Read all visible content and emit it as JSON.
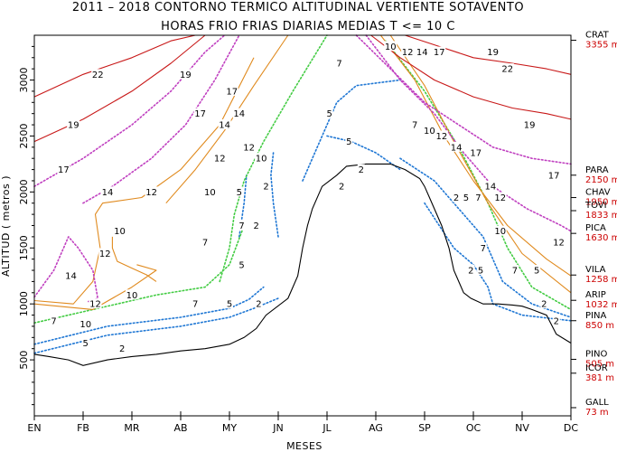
{
  "chart_data": {
    "type": "contour",
    "title": "2011 – 2018 CONTORNO TERMICO ALTITUDINAL VERTIENTE SOTAVENTO",
    "subtitle": "HORAS FRIO FRIAS DIARIAS MEDIAS T <= 10 C",
    "xlabel": "MESES",
    "ylabel": "ALTITUD ( metros )",
    "months": [
      "EN",
      "FB",
      "MR",
      "AB",
      "MY",
      "JN",
      "JL",
      "AG",
      "SP",
      "OC",
      "NV",
      "DC"
    ],
    "yticks": [
      500,
      1000,
      1500,
      2000,
      2500,
      3000
    ],
    "ylim": [
      0,
      3400
    ],
    "stations": [
      {
        "name": "CRAT",
        "alt": 3355,
        "alt_label": "3355 m"
      },
      {
        "name": "PARA",
        "alt": 2150,
        "alt_label": "2150 m"
      },
      {
        "name": "CHAV",
        "alt": 1950,
        "alt_label": "1950 m"
      },
      {
        "name": "TOVI",
        "alt": 1833,
        "alt_label": "1833 m"
      },
      {
        "name": "PICA",
        "alt": 1630,
        "alt_label": "1630 m"
      },
      {
        "name": "VILA",
        "alt": 1258,
        "alt_label": "1258 m"
      },
      {
        "name": "ARIP",
        "alt": 1032,
        "alt_label": "1032 m"
      },
      {
        "name": "PINA",
        "alt": 850,
        "alt_label": "850 m"
      },
      {
        "name": "PINO",
        "alt": 505,
        "alt_label": "505 m"
      },
      {
        "name": "ICOR",
        "alt": 381,
        "alt_label": "381 m"
      },
      {
        "name": "GALL",
        "alt": 73,
        "alt_label": "73 m"
      }
    ],
    "contour_levels": [
      2,
      5,
      7,
      10,
      12,
      14,
      17,
      19,
      22
    ],
    "level_colors": {
      "2": "#1f77d4",
      "5": "#1f77d4",
      "7": "#44cc44",
      "10": "#e08a1e",
      "12": "#e08a1e",
      "14": "#c040c0",
      "17": "#c040c0",
      "19": "#c81818",
      "22": "#c81818"
    },
    "level_styles": {
      "2": "dotted",
      "5": "dotted",
      "7": "dotted",
      "10": "solid",
      "12": "solid",
      "14": "dotted",
      "17": "dotted",
      "19": "solid",
      "22": "solid"
    },
    "contours": [
      {
        "level": 2,
        "x": [
          0,
          1.5,
          3,
          4,
          4.5,
          5
        ],
        "y": [
          560,
          720,
          800,
          880,
          960,
          1050
        ]
      },
      {
        "level": 2,
        "x": [
          5.0,
          4.9,
          4.85,
          4.9
        ],
        "y": [
          1600,
          1900,
          2150,
          2350
        ]
      },
      {
        "level": 2,
        "x": [
          6,
          6.5,
          7,
          7.5
        ],
        "y": [
          2500,
          2450,
          2350,
          2200
        ]
      },
      {
        "level": 2,
        "x": [
          8,
          8.3,
          8.6,
          9,
          9.3,
          9.4,
          10,
          11
        ],
        "y": [
          1900,
          1700,
          1500,
          1350,
          1150,
          1000,
          900,
          850
        ]
      },
      {
        "level": 5,
        "x": [
          0,
          1.5,
          3,
          4,
          4.4,
          4.7
        ],
        "y": [
          640,
          800,
          880,
          960,
          1040,
          1150
        ]
      },
      {
        "level": 5,
        "x": [
          4.2,
          4.3,
          4.35
        ],
        "y": [
          1600,
          1900,
          2150
        ]
      },
      {
        "level": 5,
        "x": [
          5.5,
          5.8,
          6,
          6.2,
          6.6,
          7.5
        ],
        "y": [
          2100,
          2400,
          2600,
          2800,
          2950,
          3000
        ]
      },
      {
        "level": 5,
        "x": [
          7.5,
          8.2,
          8.8,
          9.2,
          9.4,
          9.6,
          10.2,
          11
        ],
        "y": [
          2300,
          2100,
          1800,
          1600,
          1400,
          1200,
          1000,
          880
        ]
      },
      {
        "level": 7,
        "x": [
          0,
          1.5,
          2.5,
          3.5,
          4.0,
          4.3
        ],
        "y": [
          830,
          980,
          1080,
          1150,
          1350,
          1700
        ]
      },
      {
        "level": 7,
        "x": [
          3.8,
          4.0,
          4.1,
          4.3,
          4.7,
          5.3,
          6
        ],
        "y": [
          1200,
          1500,
          1800,
          2100,
          2450,
          2900,
          3400
        ]
      },
      {
        "level": 7,
        "x": [
          7.2,
          8,
          8.7,
          9.3,
          9.7,
          10.2,
          11
        ],
        "y": [
          3350,
          2900,
          2400,
          1900,
          1500,
          1150,
          950
        ]
      },
      {
        "level": 10,
        "x": [
          0,
          1.2,
          2,
          2.5,
          2.1
        ],
        "y": [
          1000,
          950,
          1150,
          1300,
          1350
        ]
      },
      {
        "level": 10,
        "x": [
          1.6,
          1.6,
          1.7,
          2.0,
          2.3,
          2.5
        ],
        "y": [
          1600,
          1500,
          1380,
          1320,
          1260,
          1200
        ]
      },
      {
        "level": 10,
        "x": [
          2.7,
          3.3,
          3.9,
          4.5,
          5.2
        ],
        "y": [
          1900,
          2200,
          2550,
          2950,
          3400
        ]
      },
      {
        "level": 10,
        "x": [
          7.3,
          8,
          8.6,
          9.3,
          10,
          11
        ],
        "y": [
          3400,
          2950,
          2450,
          1900,
          1450,
          1100
        ]
      },
      {
        "level": 12,
        "x": [
          0,
          0.8,
          1.2,
          1.35,
          1.25,
          1.4,
          2.2,
          3.0,
          3.8,
          4.5
        ],
        "y": [
          1030,
          1000,
          1200,
          1500,
          1800,
          1900,
          1950,
          2200,
          2600,
          3200
        ]
      },
      {
        "level": 12,
        "x": [
          7.1,
          7.8,
          8.4,
          9.0,
          9.7,
          10.5,
          11
        ],
        "y": [
          3400,
          3000,
          2500,
          2100,
          1700,
          1400,
          1250
        ]
      },
      {
        "level": 14,
        "x": [
          0,
          0.4,
          0.6,
          0.7,
          0.9,
          1.2,
          1.3,
          1.1
        ],
        "y": [
          1060,
          1300,
          1500,
          1600,
          1500,
          1300,
          1050,
          1020
        ]
      },
      {
        "level": 14,
        "x": [
          1.0,
          1.6,
          2.4,
          3.1,
          3.7,
          4.2
        ],
        "y": [
          1900,
          2050,
          2300,
          2600,
          3000,
          3400
        ]
      },
      {
        "level": 14,
        "x": [
          6.8,
          7.5,
          8.2,
          8.8,
          9.4,
          10.1,
          10.8,
          11
        ],
        "y": [
          3400,
          3000,
          2700,
          2350,
          2050,
          1850,
          1700,
          1650
        ]
      },
      {
        "level": 17,
        "x": [
          0,
          1,
          2,
          2.8,
          3.5,
          3.9
        ],
        "y": [
          2050,
          2300,
          2600,
          2900,
          3250,
          3400
        ]
      },
      {
        "level": 17,
        "x": [
          6.6,
          7.3,
          8,
          8.7,
          9.4,
          10.2,
          11
        ],
        "y": [
          3400,
          3100,
          2800,
          2600,
          2400,
          2300,
          2250
        ]
      },
      {
        "level": 19,
        "x": [
          0,
          1,
          2,
          2.8,
          3.5
        ],
        "y": [
          2450,
          2650,
          2900,
          3150,
          3400
        ]
      },
      {
        "level": 19,
        "x": [
          6.9,
          7.5,
          8.2,
          9,
          9.8,
          10.5,
          11
        ],
        "y": [
          3400,
          3200,
          3000,
          2850,
          2750,
          2700,
          2650
        ]
      },
      {
        "level": 22,
        "x": [
          0,
          1,
          2,
          2.8,
          3.3
        ],
        "y": [
          2850,
          3050,
          3200,
          3350,
          3400
        ]
      },
      {
        "level": 22,
        "x": [
          7.6,
          8.3,
          9,
          9.8,
          10.5,
          11
        ],
        "y": [
          3400,
          3300,
          3200,
          3150,
          3100,
          3050
        ]
      }
    ],
    "contour_labels": [
      {
        "text": "22",
        "x": 1.3,
        "y": 3050
      },
      {
        "text": "19",
        "x": 0.8,
        "y": 2600
      },
      {
        "text": "17",
        "x": 0.6,
        "y": 2200
      },
      {
        "text": "14",
        "x": 1.5,
        "y": 2000
      },
      {
        "text": "12",
        "x": 2.4,
        "y": 2000
      },
      {
        "text": "14",
        "x": 0.75,
        "y": 1250
      },
      {
        "text": "12",
        "x": 1.45,
        "y": 1450
      },
      {
        "text": "10",
        "x": 1.75,
        "y": 1650
      },
      {
        "text": "12",
        "x": 1.25,
        "y": 1000
      },
      {
        "text": "10",
        "x": 1.05,
        "y": 820
      },
      {
        "text": "10",
        "x": 2.0,
        "y": 1080
      },
      {
        "text": "7",
        "x": 0.4,
        "y": 850
      },
      {
        "text": "5",
        "x": 1.05,
        "y": 650
      },
      {
        "text": "2",
        "x": 1.8,
        "y": 600
      },
      {
        "text": "19",
        "x": 3.1,
        "y": 3050
      },
      {
        "text": "17",
        "x": 3.4,
        "y": 2700
      },
      {
        "text": "14",
        "x": 3.9,
        "y": 2600
      },
      {
        "text": "12",
        "x": 3.8,
        "y": 2300
      },
      {
        "text": "10",
        "x": 3.6,
        "y": 2000
      },
      {
        "text": "7",
        "x": 3.5,
        "y": 1550
      },
      {
        "text": "7",
        "x": 3.3,
        "y": 1000
      },
      {
        "text": "5",
        "x": 4.0,
        "y": 1000
      },
      {
        "text": "2",
        "x": 4.6,
        "y": 1000
      },
      {
        "text": "17",
        "x": 4.05,
        "y": 2900
      },
      {
        "text": "14",
        "x": 4.2,
        "y": 2700
      },
      {
        "text": "12",
        "x": 4.4,
        "y": 2400
      },
      {
        "text": "10",
        "x": 4.65,
        "y": 2300
      },
      {
        "text": "7",
        "x": 4.25,
        "y": 1700
      },
      {
        "text": "5",
        "x": 4.25,
        "y": 1350
      },
      {
        "text": "2",
        "x": 4.55,
        "y": 1700
      },
      {
        "text": "5",
        "x": 4.2,
        "y": 2000
      },
      {
        "text": "2",
        "x": 4.75,
        "y": 2050
      },
      {
        "text": "7",
        "x": 6.25,
        "y": 3150
      },
      {
        "text": "5",
        "x": 6.05,
        "y": 2700
      },
      {
        "text": "5",
        "x": 6.45,
        "y": 2450
      },
      {
        "text": "2",
        "x": 6.7,
        "y": 2200
      },
      {
        "text": "2",
        "x": 6.3,
        "y": 2050
      },
      {
        "text": "10",
        "x": 7.3,
        "y": 3300
      },
      {
        "text": "12",
        "x": 7.65,
        "y": 3250
      },
      {
        "text": "14",
        "x": 7.95,
        "y": 3250
      },
      {
        "text": "17",
        "x": 8.3,
        "y": 3250
      },
      {
        "text": "19",
        "x": 9.4,
        "y": 3250
      },
      {
        "text": "22",
        "x": 9.7,
        "y": 3100
      },
      {
        "text": "7",
        "x": 7.8,
        "y": 2600
      },
      {
        "text": "10",
        "x": 8.1,
        "y": 2550
      },
      {
        "text": "12",
        "x": 8.35,
        "y": 2500
      },
      {
        "text": "14",
        "x": 8.65,
        "y": 2400
      },
      {
        "text": "17",
        "x": 9.05,
        "y": 2350
      },
      {
        "text": "19",
        "x": 10.15,
        "y": 2600
      },
      {
        "text": "17",
        "x": 10.65,
        "y": 2150
      },
      {
        "text": "14",
        "x": 9.35,
        "y": 2050
      },
      {
        "text": "12",
        "x": 9.55,
        "y": 1950
      },
      {
        "text": "10",
        "x": 9.55,
        "y": 1650
      },
      {
        "text": "12",
        "x": 10.75,
        "y": 1550
      },
      {
        "text": "7",
        "x": 9.1,
        "y": 1950
      },
      {
        "text": "5",
        "x": 8.85,
        "y": 1950
      },
      {
        "text": "2",
        "x": 8.65,
        "y": 1950
      },
      {
        "text": "7",
        "x": 9.2,
        "y": 1500
      },
      {
        "text": "5",
        "x": 9.15,
        "y": 1300
      },
      {
        "text": "2",
        "x": 8.95,
        "y": 1300
      },
      {
        "text": "7",
        "x": 9.85,
        "y": 1300
      },
      {
        "text": "5",
        "x": 10.3,
        "y": 1300
      },
      {
        "text": "2",
        "x": 10.45,
        "y": 1000
      },
      {
        "text": "2",
        "x": 10.7,
        "y": 850
      }
    ],
    "terrain": {
      "x": [
        0,
        0.3,
        0.7,
        1.0,
        1.5,
        2.0,
        2.5,
        3.0,
        3.5,
        4.0,
        4.3,
        4.55,
        4.75,
        5.2,
        5.4,
        5.5,
        5.6,
        5.7,
        5.9,
        6.2,
        6.4,
        6.8,
        7.3,
        7.6,
        7.9,
        8.0,
        8.1,
        8.2,
        8.35,
        8.5,
        8.6,
        8.7,
        8.8,
        8.95,
        9.2,
        9.5,
        9.8,
        10.0,
        10.2,
        10.5,
        10.7,
        11.0
      ],
      "y": [
        550,
        530,
        500,
        450,
        500,
        530,
        550,
        580,
        600,
        640,
        700,
        780,
        900,
        1050,
        1250,
        1500,
        1700,
        1850,
        2050,
        2150,
        2230,
        2250,
        2250,
        2200,
        2120,
        2050,
        1950,
        1850,
        1700,
        1500,
        1300,
        1200,
        1100,
        1050,
        1000,
        1000,
        990,
        980,
        950,
        900,
        730,
        650
      ]
    }
  }
}
